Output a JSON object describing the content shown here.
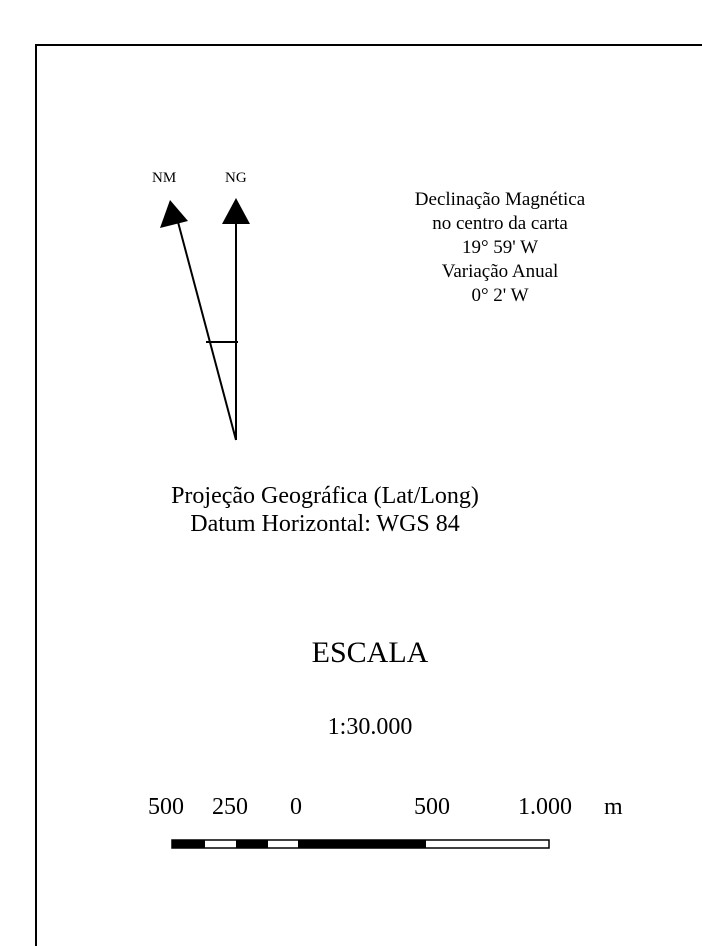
{
  "north_arrow": {
    "magnetic_label": "NM",
    "geographic_label": "NG"
  },
  "declination": {
    "line1": "Declinação Magnética",
    "line2": "no centro da carta",
    "line3": "19° 59' W",
    "line4": "Variação Anual",
    "line5": "0° 2' W"
  },
  "projection": {
    "line1": "Projeção Geográfica (Lat/Long)",
    "line2": "Datum Horizontal: WGS 84"
  },
  "scale": {
    "title": "ESCALA",
    "ratio": "1:30.000",
    "ticks": [
      "500",
      "250",
      "0",
      "500",
      "1.000"
    ],
    "unit": "m"
  }
}
